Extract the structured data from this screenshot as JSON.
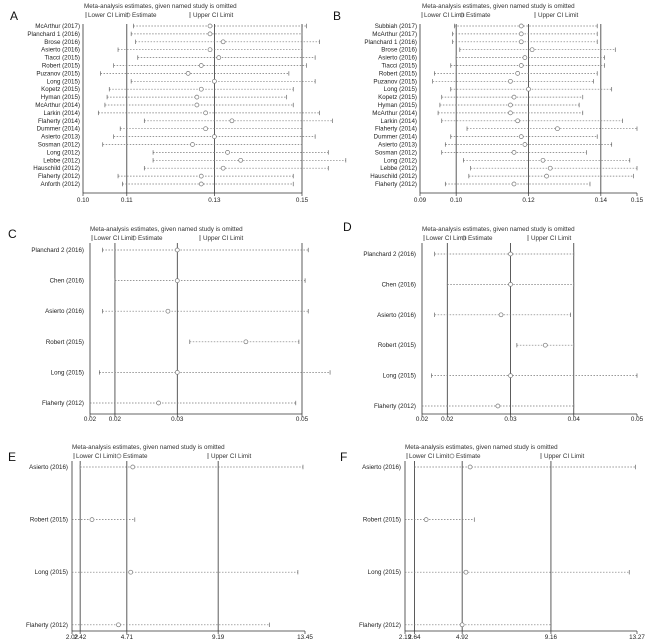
{
  "legend": {
    "lower": "Lower CI Limit",
    "estimate": "Estimate",
    "upper": "Upper CI Limit"
  },
  "chart_data": [
    {
      "panel": "A",
      "type": "forest",
      "title": "Meta-analysis estimates, given named study is omitted",
      "xlim": [
        0.1,
        0.15
      ],
      "ref_lines": [
        0.11,
        0.13,
        0.15
      ],
      "ticks": [
        {
          "v": 0.1,
          "t": "0.10"
        },
        {
          "v": 0.11,
          "t": "0.11"
        },
        {
          "v": 0.13,
          "t": "0.13"
        },
        {
          "v": 0.15,
          "t": "0.15"
        }
      ],
      "studies": [
        "McArthur (2017)",
        "Planchard 1 (2016)",
        "Brose (2016)",
        "Asierto (2016)",
        "Tiacci (2015)",
        "Robert (2015)",
        "Puzanov (2015)",
        "Long (2015)",
        "Kopetz (2015)",
        "Hyman (2015)",
        "McArthur (2014)",
        "Larkin (2014)",
        "Flaherty (2014)",
        "Dummer (2014)",
        "Asierto (2013)",
        "Sosman (2012)",
        "Long (2012)",
        "Lebbe (2012)",
        "Hauschild (2012)",
        "Flaherty (2012)",
        "Anforth (2012)"
      ],
      "lower": [
        0.1115,
        0.111,
        0.112,
        0.108,
        0.1125,
        0.107,
        0.104,
        0.111,
        0.106,
        0.1055,
        0.105,
        0.1035,
        0.114,
        0.1085,
        0.107,
        0.1045,
        0.116,
        0.116,
        0.114,
        0.108,
        0.109
      ],
      "est": [
        0.129,
        0.129,
        0.132,
        0.129,
        0.131,
        0.127,
        0.124,
        0.13,
        0.127,
        0.126,
        0.126,
        0.128,
        0.134,
        0.128,
        0.13,
        0.125,
        0.133,
        0.136,
        0.132,
        0.127,
        0.127
      ],
      "upper": [
        0.151,
        0.15,
        0.154,
        0.15,
        0.153,
        0.151,
        0.147,
        0.153,
        0.148,
        0.1465,
        0.148,
        0.154,
        0.157,
        0.15,
        0.153,
        0.15,
        0.156,
        0.16,
        0.156,
        0.148,
        0.148
      ]
    },
    {
      "panel": "B",
      "type": "forest",
      "title": "Meta-analysis estimates, given named study is omitted",
      "xlim": [
        0.09,
        0.15
      ],
      "ref_lines": [
        0.1,
        0.12,
        0.14
      ],
      "ticks": [
        {
          "v": 0.09,
          "t": "0.09"
        },
        {
          "v": 0.1,
          "t": "0.10"
        },
        {
          "v": 0.12,
          "t": "0.12"
        },
        {
          "v": 0.14,
          "t": "0.14"
        },
        {
          "v": 0.15,
          "t": "0.15"
        }
      ],
      "studies": [
        "Subbiah (2017)",
        "McArthur (2017)",
        "Planchard 1 (2016)",
        "Brose (2016)",
        "Asierto (2016)",
        "Tiacci (2015)",
        "Robert (2015)",
        "Puzanov (2015)",
        "Long (2015)",
        "Kopetz (2015)",
        "Hyman (2015)",
        "McArthur (2014)",
        "Larkin (2014)",
        "Flaherty (2014)",
        "Dummer (2014)",
        "Asierto (2013)",
        "Sosman (2012)",
        "Long (2012)",
        "Lebbe (2012)",
        "Hauschild (2012)",
        "Flaherty (2012)"
      ],
      "lower": [
        0.0995,
        0.099,
        0.099,
        0.101,
        0.1,
        0.0985,
        0.094,
        0.0935,
        0.0985,
        0.096,
        0.0955,
        0.095,
        0.096,
        0.103,
        0.0985,
        0.097,
        0.096,
        0.102,
        0.104,
        0.1035,
        0.097
      ],
      "est": [
        0.118,
        0.118,
        0.118,
        0.121,
        0.119,
        0.118,
        0.117,
        0.115,
        0.12,
        0.116,
        0.115,
        0.115,
        0.117,
        0.128,
        0.118,
        0.119,
        0.116,
        0.124,
        0.126,
        0.125,
        0.116
      ],
      "upper": [
        0.139,
        0.139,
        0.139,
        0.144,
        0.141,
        0.141,
        0.139,
        0.138,
        0.143,
        0.135,
        0.134,
        0.135,
        0.146,
        0.15,
        0.139,
        0.143,
        0.136,
        0.148,
        0.15,
        0.149,
        0.137
      ]
    },
    {
      "panel": "C",
      "type": "forest",
      "title": "Meta-analysis estimates, given named study is omitted",
      "xlim": [
        0.016,
        0.05
      ],
      "ref_lines": [
        0.02,
        0.03,
        0.05
      ],
      "ticks": [
        {
          "v": 0.016,
          "t": "0.02"
        },
        {
          "v": 0.02,
          "t": "0.02"
        },
        {
          "v": 0.03,
          "t": "0.03"
        },
        {
          "v": 0.05,
          "t": "0.05"
        }
      ],
      "studies": [
        "Planchard 2 (2016)",
        "Chen (2016)",
        "Asierto (2016)",
        "Robert (2015)",
        "Long (2015)",
        "Flaherty (2012)"
      ],
      "lower": [
        0.018,
        0.02,
        0.018,
        0.032,
        0.0175,
        0.016
      ],
      "est": [
        0.03,
        0.03,
        0.0285,
        0.041,
        0.03,
        0.027
      ],
      "upper": [
        0.051,
        0.0505,
        0.051,
        0.0495,
        0.0545,
        0.049
      ]
    },
    {
      "panel": "D",
      "type": "forest",
      "title": "Meta-analysis estimates, given named study is omitted",
      "xlim": [
        0.016,
        0.05
      ],
      "ref_lines": [
        0.02,
        0.03,
        0.04
      ],
      "ticks": [
        {
          "v": 0.016,
          "t": "0.02"
        },
        {
          "v": 0.02,
          "t": "0.02"
        },
        {
          "v": 0.03,
          "t": "0.03"
        },
        {
          "v": 0.04,
          "t": "0.04"
        },
        {
          "v": 0.05,
          "t": "0.05"
        }
      ],
      "studies": [
        "Planchard 2 (2016)",
        "Chen (2016)",
        "Asierto (2016)",
        "Robert (2015)",
        "Long (2015)",
        "Flaherty (2012)"
      ],
      "lower": [
        0.018,
        0.02,
        0.018,
        0.031,
        0.0175,
        0.016
      ],
      "est": [
        0.03,
        0.03,
        0.0285,
        0.0355,
        0.03,
        0.028
      ],
      "upper": [
        0.04,
        0.04,
        0.0395,
        0.04,
        0.05,
        0.04
      ]
    },
    {
      "panel": "E",
      "type": "forest",
      "title": "Meta-analysis estimates, given named study is omitted",
      "xlim": [
        2.02,
        13.45
      ],
      "ref_lines": [
        2.42,
        4.71,
        9.19
      ],
      "ticks": [
        {
          "v": 2.02,
          "t": "2.02"
        },
        {
          "v": 2.42,
          "t": "2.42"
        },
        {
          "v": 4.71,
          "t": "4.71"
        },
        {
          "v": 9.19,
          "t": "9.19"
        },
        {
          "v": 13.45,
          "t": "13.45"
        }
      ],
      "studies": [
        "Asierto (2016)",
        "Robert (2015)",
        "Long (2015)",
        "Flaherty (2012)"
      ],
      "lower": [
        2.42,
        2.02,
        2.02,
        2.02
      ],
      "est": [
        5.0,
        3.0,
        4.9,
        4.3
      ],
      "upper": [
        13.35,
        5.1,
        13.1,
        11.7
      ]
    },
    {
      "panel": "F",
      "type": "forest",
      "title": "Meta-analysis estimates, given named study is omitted",
      "xlim": [
        2.19,
        13.27
      ],
      "ref_lines": [
        2.64,
        4.92,
        9.16
      ],
      "ticks": [
        {
          "v": 2.19,
          "t": "2.19"
        },
        {
          "v": 2.64,
          "t": "2.64"
        },
        {
          "v": 4.92,
          "t": "4.92"
        },
        {
          "v": 9.16,
          "t": "9.16"
        },
        {
          "v": 13.27,
          "t": "13.27"
        }
      ],
      "studies": [
        "Asierto (2016)",
        "Robert (2015)",
        "Long (2015)",
        "Flaherty (2012)"
      ],
      "lower": [
        2.64,
        2.19,
        2.19,
        2.19
      ],
      "est": [
        5.3,
        3.2,
        5.1,
        4.92
      ],
      "upper": [
        13.2,
        5.5,
        12.9,
        9.16
      ]
    }
  ]
}
